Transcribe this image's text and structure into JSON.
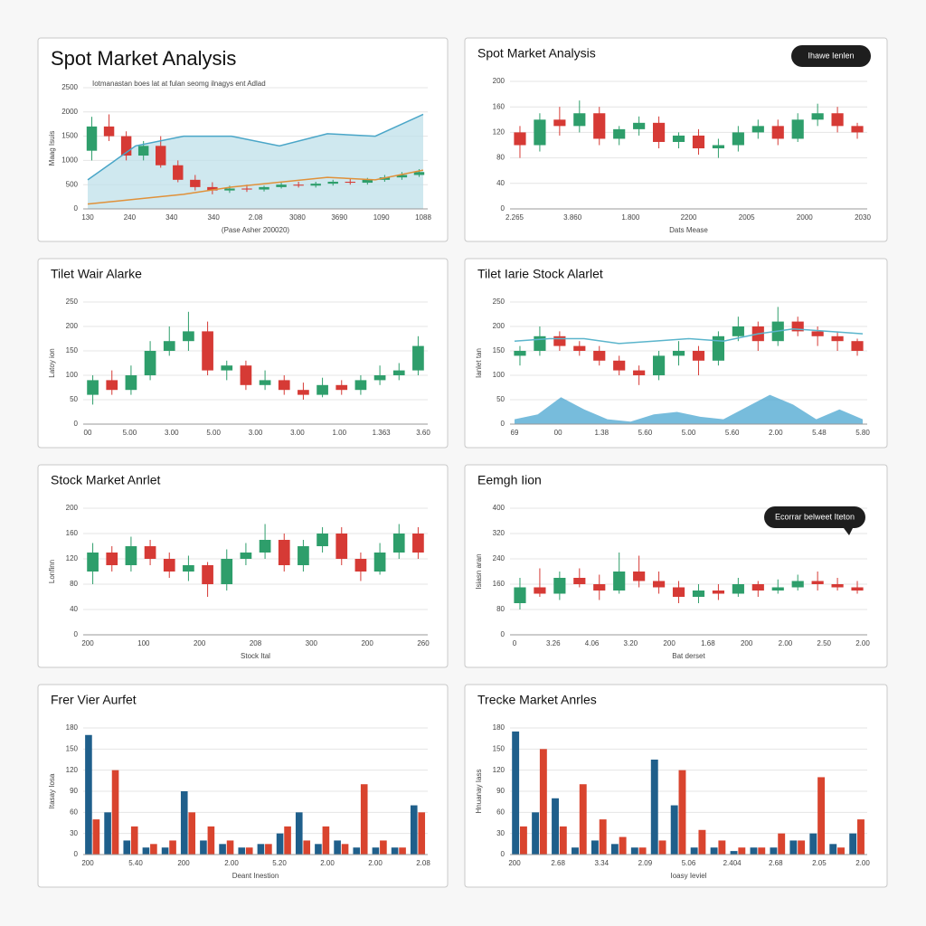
{
  "chart_data": [
    {
      "type": "candlestick",
      "title": "Spot Market Analysis",
      "ylabel": "Maag Isuis",
      "xlabel": "(Pase Asher 200020)",
      "annotation": "Iotmanastan boes lat at fulan seomg ilnagys ent Adlad",
      "xlabels": [
        "130",
        "240",
        "340",
        "340",
        "2.08",
        "3080",
        "3690",
        "1090",
        "1088"
      ],
      "ylim": [
        0,
        2500
      ],
      "yticks": [
        0,
        500,
        1000,
        1500,
        2000,
        2500
      ],
      "up_color": "#2e9e6b",
      "down_color": "#d63a35",
      "candles": {
        "open": [
          1200,
          1700,
          1500,
          1100,
          1300,
          900,
          600,
          450,
          380,
          420,
          400,
          450,
          500,
          480,
          520,
          560,
          540,
          600,
          650,
          700
        ],
        "close": [
          1700,
          1500,
          1100,
          1300,
          900,
          600,
          450,
          380,
          420,
          400,
          450,
          500,
          480,
          520,
          560,
          540,
          600,
          650,
          700,
          760
        ],
        "high": [
          1900,
          1950,
          1600,
          1400,
          1500,
          1000,
          700,
          550,
          480,
          500,
          480,
          540,
          560,
          560,
          600,
          620,
          640,
          700,
          760,
          820
        ],
        "low": [
          1000,
          1400,
          1000,
          1000,
          850,
          550,
          380,
          300,
          330,
          350,
          360,
          420,
          440,
          440,
          480,
          500,
          500,
          560,
          600,
          660
        ]
      },
      "areas": [
        {
          "color": "#bfe0ea",
          "values": [
            600,
            1300,
            1500,
            1500,
            1300,
            1550,
            1500,
            1950
          ]
        }
      ],
      "lines": [
        {
          "color": "#4aa6c8",
          "values": [
            600,
            1300,
            1500,
            1500,
            1300,
            1550,
            1500,
            1950
          ]
        },
        {
          "color": "#e0913a",
          "values": [
            100,
            200,
            300,
            450,
            550,
            650,
            600,
            800
          ]
        }
      ]
    },
    {
      "type": "candlestick",
      "title": "Spot Market Analysis",
      "badge": "Ihawe Ienlen",
      "xlabel": "Dats Mease",
      "xlabels": [
        "2.265",
        "3.860",
        "1.800",
        "2200",
        "2005",
        "2000",
        "2030"
      ],
      "ylim": [
        0,
        200
      ],
      "yticks": [
        0,
        40,
        80,
        120,
        160,
        200
      ],
      "up_color": "#2e9e6b",
      "down_color": "#d63a35",
      "candles": {
        "open": [
          120,
          100,
          140,
          130,
          150,
          110,
          125,
          135,
          105,
          115,
          95,
          100,
          120,
          130,
          110,
          140,
          150,
          130
        ],
        "close": [
          100,
          140,
          130,
          150,
          110,
          125,
          135,
          105,
          115,
          95,
          100,
          120,
          130,
          110,
          140,
          150,
          130,
          120
        ],
        "high": [
          130,
          150,
          160,
          170,
          160,
          130,
          145,
          145,
          120,
          125,
          110,
          130,
          140,
          140,
          150,
          165,
          160,
          135
        ],
        "low": [
          80,
          90,
          115,
          120,
          100,
          100,
          115,
          95,
          95,
          85,
          80,
          90,
          110,
          100,
          105,
          130,
          120,
          110
        ]
      }
    },
    {
      "type": "candlestick",
      "title": "Tilet Wair Alarke",
      "ylabel": "Latoy ion",
      "xlabels": [
        "00",
        "5.00",
        "3.00",
        "5.00",
        "3.00",
        "3.00",
        "1.00",
        "1.363",
        "3.60"
      ],
      "ylim": [
        0,
        250
      ],
      "yticks": [
        0,
        50,
        100,
        150,
        200,
        250
      ],
      "up_color": "#2e9e6b",
      "down_color": "#d63a35",
      "candles": {
        "open": [
          60,
          90,
          70,
          100,
          150,
          170,
          190,
          110,
          120,
          80,
          90,
          70,
          60,
          80,
          70,
          90,
          100,
          110
        ],
        "close": [
          90,
          70,
          100,
          150,
          170,
          190,
          110,
          120,
          80,
          90,
          70,
          60,
          80,
          70,
          90,
          100,
          110,
          160
        ],
        "high": [
          100,
          110,
          120,
          170,
          200,
          230,
          210,
          130,
          130,
          110,
          100,
          85,
          95,
          90,
          100,
          120,
          125,
          180
        ],
        "low": [
          40,
          60,
          60,
          90,
          140,
          150,
          100,
          90,
          70,
          70,
          60,
          50,
          55,
          60,
          60,
          80,
          90,
          100
        ]
      }
    },
    {
      "type": "candlestick",
      "title": "Tilet Iarie Stock Alarlet",
      "ylabel": "Ianlet tan",
      "xlabels": [
        "69",
        "00",
        "1.38",
        "5.60",
        "5.00",
        "5.60",
        "2.00",
        "5.48",
        "5.80"
      ],
      "ylim": [
        0,
        250
      ],
      "yticks": [
        0,
        50,
        100,
        150,
        200,
        250
      ],
      "up_color": "#2e9e6b",
      "down_color": "#d63a35",
      "candles": {
        "open": [
          140,
          150,
          180,
          160,
          150,
          130,
          110,
          100,
          140,
          150,
          130,
          180,
          200,
          170,
          210,
          190,
          180,
          170
        ],
        "close": [
          150,
          180,
          160,
          150,
          130,
          110,
          100,
          140,
          150,
          130,
          180,
          200,
          170,
          210,
          190,
          180,
          170,
          150
        ],
        "high": [
          160,
          200,
          190,
          170,
          160,
          140,
          120,
          150,
          170,
          160,
          190,
          220,
          210,
          240,
          220,
          200,
          190,
          175
        ],
        "low": [
          120,
          140,
          150,
          140,
          120,
          100,
          80,
          90,
          120,
          100,
          120,
          170,
          150,
          160,
          180,
          160,
          150,
          140
        ]
      },
      "areas": [
        {
          "color": "#4aa6d0",
          "values": [
            10,
            20,
            55,
            30,
            10,
            5,
            20,
            25,
            15,
            10,
            35,
            60,
            40,
            10,
            30,
            10
          ]
        }
      ],
      "lines": [
        {
          "color": "#5bb5cc",
          "values": [
            170,
            175,
            175,
            165,
            170,
            175,
            170,
            185,
            195,
            190,
            185
          ]
        }
      ]
    },
    {
      "type": "candlestick",
      "title": "Stock Market Anrlet",
      "ylabel": "Lonfinn",
      "xlabel": "Stock Ital",
      "xlabels": [
        "200",
        "100",
        "200",
        "208",
        "300",
        "200",
        "260"
      ],
      "ylim": [
        0,
        200
      ],
      "yticks": [
        0,
        40,
        80,
        120,
        160,
        200
      ],
      "up_color": "#2e9e6b",
      "down_color": "#d63a35",
      "candles": {
        "open": [
          100,
          130,
          110,
          140,
          120,
          100,
          110,
          80,
          120,
          130,
          150,
          110,
          140,
          160,
          120,
          100,
          130,
          160
        ],
        "close": [
          130,
          110,
          140,
          120,
          100,
          110,
          80,
          120,
          130,
          150,
          110,
          140,
          160,
          120,
          100,
          130,
          160,
          130
        ],
        "high": [
          145,
          140,
          155,
          150,
          130,
          125,
          115,
          135,
          145,
          175,
          160,
          150,
          170,
          170,
          130,
          145,
          175,
          170
        ],
        "low": [
          80,
          100,
          100,
          110,
          90,
          85,
          60,
          70,
          110,
          120,
          100,
          100,
          130,
          110,
          85,
          95,
          120,
          120
        ]
      }
    },
    {
      "type": "candlestick",
      "title": "Eemgh Iion",
      "badge": "Ecorrar belweet Iteton",
      "ylabel": "Isiasn aran",
      "xlabel": "Bat derset",
      "xlabels": [
        "0",
        "3.26",
        "4.06",
        "3.20",
        "200",
        "1.68",
        "200",
        "2.00",
        "2.50",
        "2.00"
      ],
      "ylim": [
        0,
        400
      ],
      "yticks": [
        0,
        80,
        160,
        240,
        320,
        400
      ],
      "up_color": "#2e9e6b",
      "down_color": "#d63a35",
      "candles": {
        "open": [
          100,
          150,
          130,
          180,
          160,
          140,
          200,
          170,
          150,
          120,
          140,
          130,
          160,
          140,
          150,
          170,
          160,
          150
        ],
        "close": [
          150,
          130,
          180,
          160,
          140,
          200,
          170,
          150,
          120,
          140,
          130,
          160,
          140,
          150,
          170,
          160,
          150,
          140
        ],
        "high": [
          180,
          210,
          200,
          210,
          190,
          260,
          250,
          200,
          170,
          160,
          160,
          180,
          170,
          175,
          190,
          200,
          180,
          170
        ],
        "low": [
          80,
          120,
          110,
          150,
          110,
          130,
          150,
          130,
          100,
          100,
          110,
          120,
          120,
          130,
          140,
          140,
          140,
          130
        ]
      }
    },
    {
      "type": "bar",
      "title": "Frer Vier Aurfet",
      "ylabel": "Itasay Iosa",
      "xlabel": "Deant Inestion",
      "xlabels": [
        "200",
        "5.40",
        "200",
        "2.00",
        "5.20",
        "2.00",
        "2.00",
        "2.08"
      ],
      "ylim": [
        0,
        180
      ],
      "yticks": [
        0,
        30,
        60,
        90,
        120,
        150,
        180
      ],
      "series": [
        {
          "color": "#1f5f8b",
          "values": [
            170,
            60,
            20,
            10,
            10,
            90,
            20,
            15,
            10,
            15,
            30,
            60,
            15,
            20,
            10,
            10,
            10,
            70
          ]
        },
        {
          "color": "#d9442e",
          "values": [
            50,
            120,
            40,
            15,
            20,
            60,
            40,
            20,
            10,
            15,
            40,
            20,
            40,
            15,
            100,
            20,
            10,
            60
          ]
        }
      ]
    },
    {
      "type": "bar",
      "title": "Trecke Market Anrles",
      "ylabel": "Hnuanay Iass",
      "xlabel": "Ioasy Ieviel",
      "xlabels": [
        "200",
        "2.68",
        "3.34",
        "2.09",
        "5.06",
        "2.404",
        "2.68",
        "2.05",
        "2.00"
      ],
      "ylim": [
        0,
        180
      ],
      "yticks": [
        0,
        30,
        60,
        90,
        120,
        150,
        180
      ],
      "series": [
        {
          "color": "#1f5f8b",
          "values": [
            175,
            60,
            80,
            10,
            20,
            15,
            10,
            135,
            70,
            10,
            10,
            5,
            10,
            10,
            20,
            30,
            15,
            30
          ]
        },
        {
          "color": "#d9442e",
          "values": [
            40,
            150,
            40,
            100,
            50,
            25,
            10,
            20,
            120,
            35,
            20,
            10,
            10,
            30,
            20,
            110,
            10,
            50
          ]
        }
      ]
    }
  ]
}
